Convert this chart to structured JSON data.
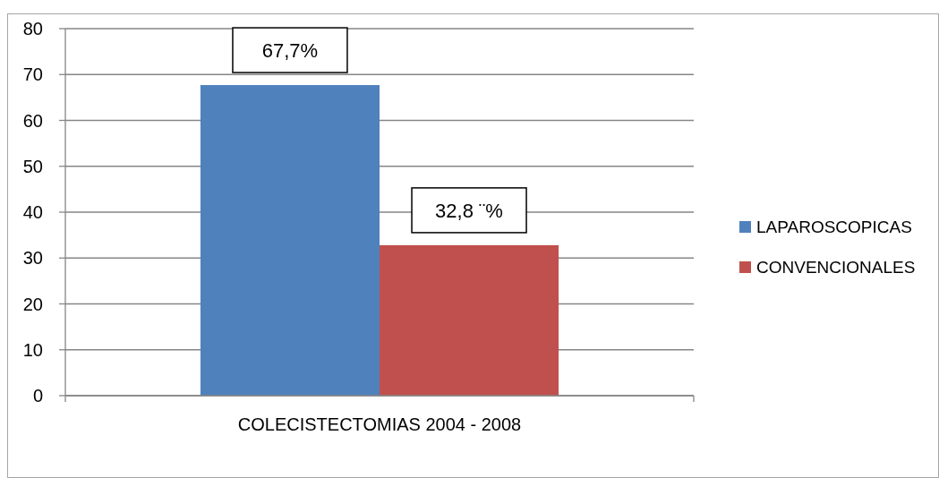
{
  "chart_data": {
    "type": "bar",
    "categories": [
      "COLECISTECTOMIAS 2004 - 2008"
    ],
    "series": [
      {
        "name": "LAPAROSCOPICAS",
        "color": "#4f81bd",
        "values": [
          67.7
        ],
        "value_labels": [
          "67,7%"
        ]
      },
      {
        "name": "CONVENCIONALES",
        "color": "#c0504d",
        "values": [
          32.8
        ],
        "value_labels": [
          "32,8 ¨%"
        ]
      }
    ],
    "ylim": [
      0,
      80
    ],
    "yticks": [
      0,
      10,
      20,
      30,
      40,
      50,
      60,
      70,
      80
    ],
    "grid": "y",
    "legend": "right"
  }
}
